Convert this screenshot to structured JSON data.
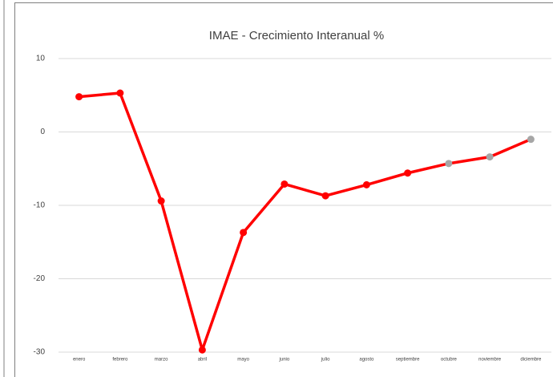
{
  "chart_data": {
    "type": "line",
    "title": "IMAE - Crecimiento Interanual %",
    "categories": [
      "enero",
      "febrero",
      "marzo",
      "abril",
      "mayo",
      "junio",
      "julio",
      "agosto",
      "septiembre",
      "octubre",
      "noviembre",
      "diciembre"
    ],
    "series": [
      {
        "name": "IMAE",
        "color": "#ff0000",
        "values": [
          4.8,
          5.3,
          -9.4,
          -29.7,
          -13.7,
          -7.1,
          -8.7,
          -7.2,
          -5.6,
          -4.3,
          -3.4,
          -1.0
        ],
        "marker_colors": [
          "#ff0000",
          "#ff0000",
          "#ff0000",
          "#ff0000",
          "#ff0000",
          "#ff0000",
          "#ff0000",
          "#ff0000",
          "#ff0000",
          "#a6a6a6",
          "#a6a6a6",
          "#a6a6a6"
        ]
      }
    ],
    "ylim": [
      -30,
      10
    ],
    "yticks": [
      10,
      0,
      -10,
      -20,
      -30
    ],
    "grid": true
  }
}
